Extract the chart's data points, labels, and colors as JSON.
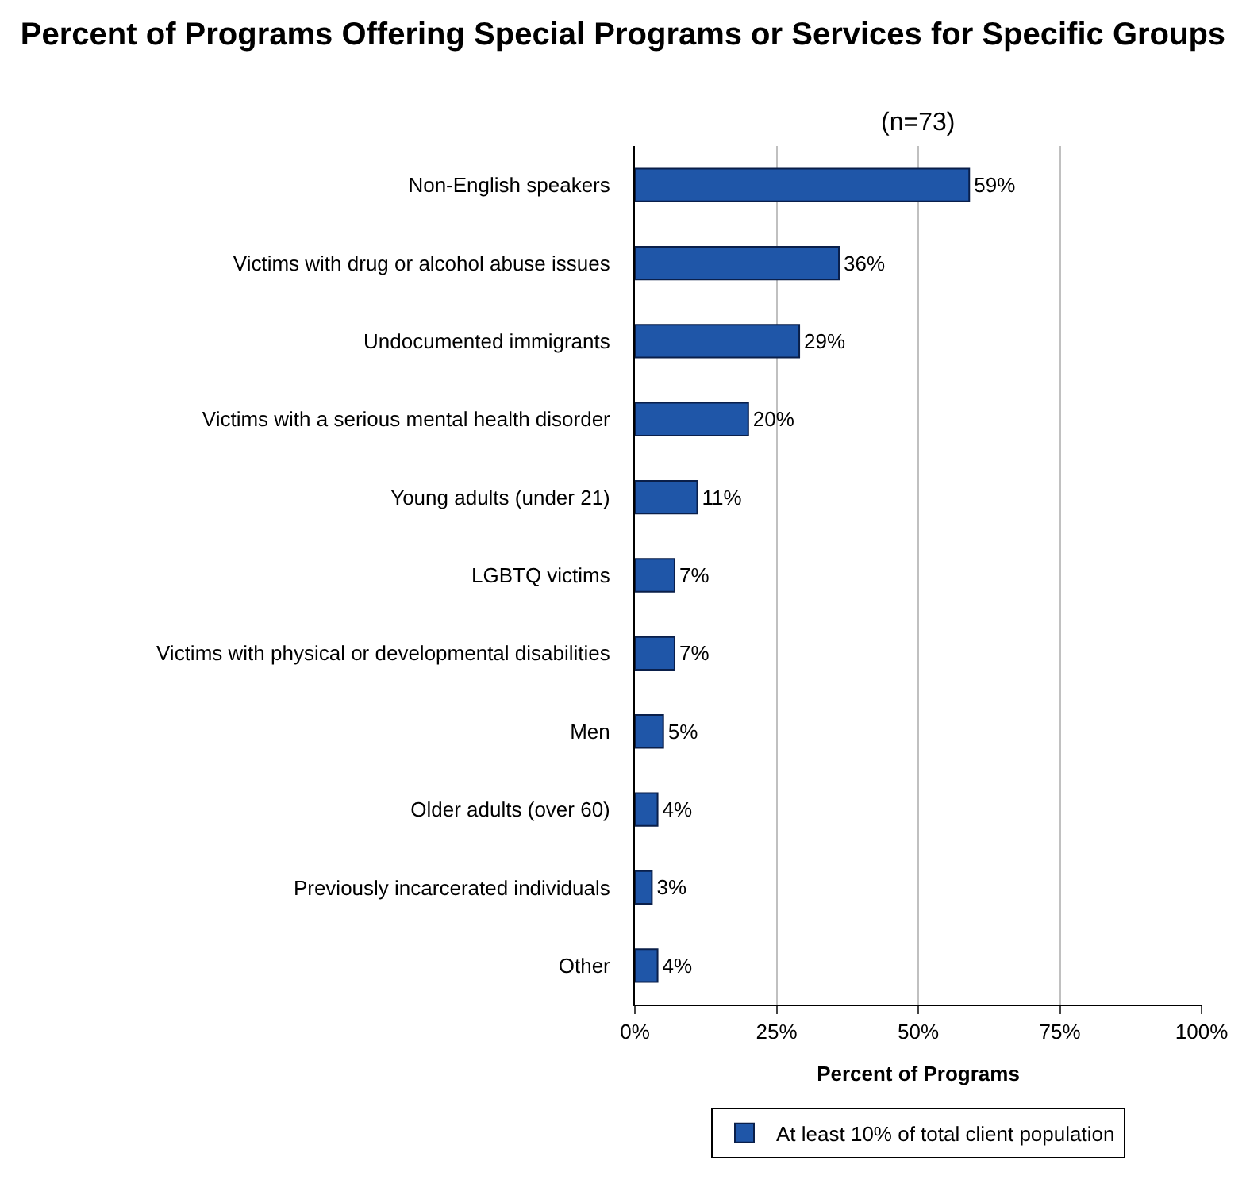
{
  "chart_data": {
    "type": "bar",
    "orientation": "horizontal",
    "title": "Percent of Programs Offering Special Programs or Services for Specific Groups",
    "subtitle": "(n=73)",
    "xlabel": "Percent of Programs",
    "categories": [
      "Non-English speakers",
      "Victims with drug or alcohol abuse issues",
      "Undocumented immigrants",
      "Victims with a serious mental health disorder",
      "Young adults (under 21)",
      "LGBTQ victims",
      "Victims with physical or developmental disabilities",
      "Men",
      "Older adults (over 60)",
      "Previously incarcerated individuals",
      "Other"
    ],
    "series": [
      {
        "name": "At least 10% of total client population",
        "color": "#1f56a8",
        "values": [
          59,
          36,
          29,
          20,
          11,
          7,
          7,
          5,
          4,
          3,
          4
        ],
        "value_labels": [
          "59%",
          "36%",
          "29%",
          "20%",
          "11%",
          "7%",
          "7%",
          "5%",
          "4%",
          "3%",
          "4%"
        ]
      }
    ],
    "xlim": [
      0,
      100
    ],
    "xticks": [
      {
        "value": 0,
        "label": "0%"
      },
      {
        "value": 25,
        "label": "25%"
      },
      {
        "value": 50,
        "label": "50%"
      },
      {
        "value": 75,
        "label": "75%"
      },
      {
        "value": 100,
        "label": "100%"
      }
    ],
    "grid": "x",
    "legend": "bottom"
  }
}
